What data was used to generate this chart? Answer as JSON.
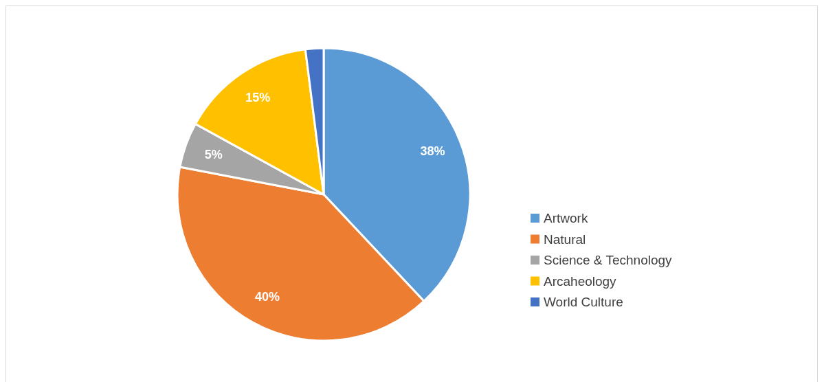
{
  "chart_data": {
    "type": "pie",
    "categories": [
      "Artwork",
      "Natural",
      "Science & Technology",
      "Arcaheology",
      "World Culture"
    ],
    "values": [
      38,
      40,
      5,
      15,
      2
    ],
    "value_labels": [
      "38%",
      "40%",
      "5%",
      "15%",
      null
    ],
    "colors": [
      "#5b9bd5",
      "#ed7d31",
      "#a5a5a5",
      "#ffc000",
      "#4472c4"
    ],
    "legend": "right"
  }
}
